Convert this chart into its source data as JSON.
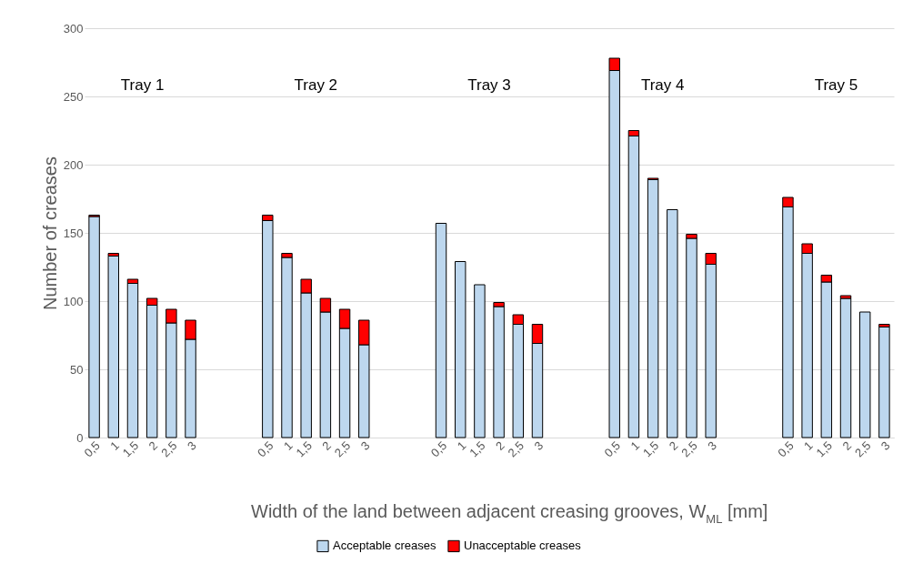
{
  "chart_data": {
    "type": "bar",
    "stacked": true,
    "xlabel": "Width of the land between adjacent creasing grooves, W$_{ML}$ [mm]",
    "ylabel": "Number of creases",
    "categories": [
      "0,5",
      "1",
      "1,5",
      "2",
      "2,5",
      "3",
      null,
      null,
      null,
      "0,5",
      "1",
      "1,5",
      "2",
      "2,5",
      "3",
      null,
      null,
      null,
      "0,5",
      "1",
      "1,5",
      "2",
      "2,5",
      "3",
      null,
      null,
      null,
      "0,5",
      "1",
      "1,5",
      "2",
      "2,5",
      "3",
      null,
      null,
      null,
      "0,5",
      "1",
      "1,5",
      "2",
      "2,5",
      "3"
    ],
    "series": [
      {
        "name": "Acceptable creases",
        "color": "#bdd7ee",
        "values": [
          162,
          133,
          113,
          97,
          84,
          72,
          null,
          null,
          null,
          159,
          132,
          106,
          92,
          80,
          68,
          null,
          null,
          null,
          157,
          129,
          112,
          96,
          83,
          69,
          null,
          null,
          null,
          269,
          221,
          189,
          167,
          146,
          127,
          null,
          null,
          null,
          169,
          135,
          114,
          102,
          92,
          81
        ]
      },
      {
        "name": "Unacceptable creases",
        "color": "#ff0000",
        "values": [
          1,
          2,
          3,
          5,
          10,
          14,
          null,
          null,
          null,
          4,
          3,
          10,
          10,
          14,
          18,
          null,
          null,
          null,
          0,
          0,
          0,
          3,
          7,
          14,
          null,
          null,
          null,
          9,
          4,
          1,
          0,
          3,
          8,
          null,
          null,
          null,
          7,
          7,
          5,
          2,
          0,
          2
        ]
      }
    ],
    "annotations": [
      "Tray 1",
      "Tray 2",
      "Tray 3",
      "Tray 4",
      "Tray 5"
    ],
    "ylim": [
      0,
      300
    ],
    "yticks": [
      0,
      50,
      100,
      150,
      200,
      250,
      300
    ],
    "grid": "y",
    "legend": "bottom"
  }
}
